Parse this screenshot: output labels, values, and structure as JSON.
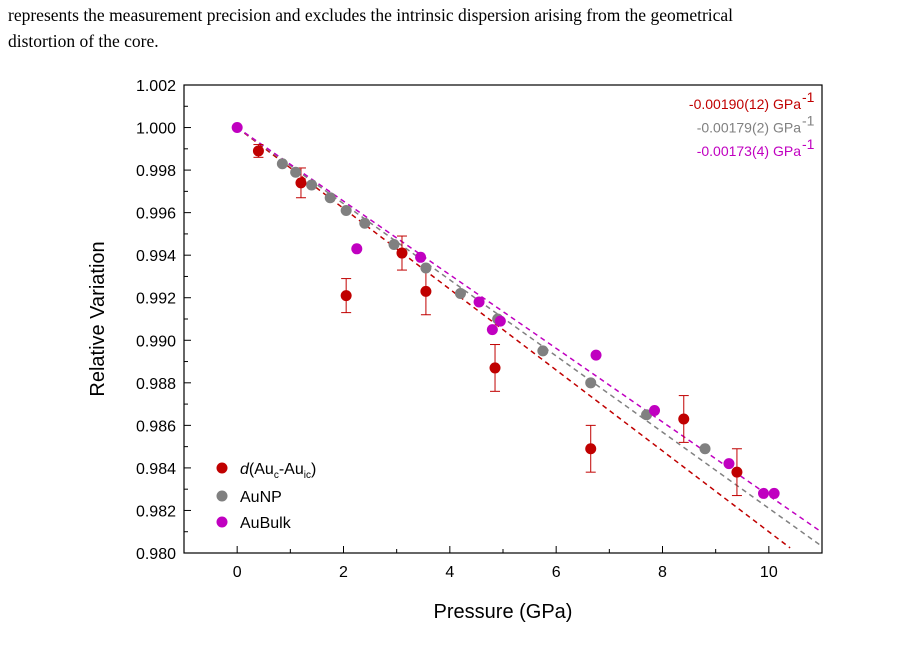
{
  "caption": {
    "line1": "represents the measurement precision and excludes the intrinsic dispersion arising from the geometrical",
    "line2": "distortion of the core."
  },
  "chart_data": {
    "type": "scatter",
    "xlabel": "Pressure (GPa)",
    "ylabel": "Relative Variation",
    "xlim": [
      -1,
      11
    ],
    "ylim": [
      0.98,
      1.002
    ],
    "x_ticks": [
      0,
      2,
      4,
      6,
      8,
      10
    ],
    "y_ticks": [
      0.98,
      0.982,
      0.984,
      0.986,
      0.988,
      0.99,
      0.992,
      0.994,
      0.996,
      0.998,
      1.0,
      1.002
    ],
    "x_tick_labels": [
      "0",
      "2",
      "4",
      "6",
      "8",
      "10"
    ],
    "y_tick_labels": [
      "0.980",
      "0.982",
      "0.984",
      "0.986",
      "0.988",
      "0.990",
      "0.992",
      "0.994",
      "0.996",
      "0.998",
      "1.000",
      "1.002"
    ],
    "grid": false,
    "legend_position": "bottom-left",
    "series": [
      {
        "name_parts": [
          "d",
          "(Au",
          "c",
          "-Au",
          "ic",
          ")"
        ],
        "color": "#c00000",
        "marker": "circle",
        "points": [
          {
            "x": 0.4,
            "y": 0.9989,
            "err": 0.0003
          },
          {
            "x": 1.2,
            "y": 0.9974,
            "err": 0.0007
          },
          {
            "x": 2.05,
            "y": 0.9921,
            "err": 0.0008
          },
          {
            "x": 3.1,
            "y": 0.9941,
            "err": 0.0008
          },
          {
            "x": 3.55,
            "y": 0.9923,
            "err": 0.0011
          },
          {
            "x": 4.85,
            "y": 0.9887,
            "err": 0.0011
          },
          {
            "x": 6.65,
            "y": 0.9849,
            "err": 0.0011
          },
          {
            "x": 8.4,
            "y": 0.9863,
            "err": 0.0011
          },
          {
            "x": 9.4,
            "y": 0.9838,
            "err": 0.0011
          }
        ]
      },
      {
        "name": "AuNP",
        "color": "#808080",
        "marker": "circle",
        "points": [
          {
            "x": 0.85,
            "y": 0.9983
          },
          {
            "x": 1.1,
            "y": 0.9979
          },
          {
            "x": 1.4,
            "y": 0.9973
          },
          {
            "x": 1.75,
            "y": 0.9967
          },
          {
            "x": 2.05,
            "y": 0.9961
          },
          {
            "x": 2.4,
            "y": 0.9955
          },
          {
            "x": 2.95,
            "y": 0.9945
          },
          {
            "x": 3.55,
            "y": 0.9934
          },
          {
            "x": 4.2,
            "y": 0.9922
          },
          {
            "x": 4.9,
            "y": 0.991
          },
          {
            "x": 5.75,
            "y": 0.9895
          },
          {
            "x": 6.65,
            "y": 0.988
          },
          {
            "x": 7.7,
            "y": 0.9865
          },
          {
            "x": 8.8,
            "y": 0.9849
          }
        ]
      },
      {
        "name": "AuBulk",
        "color": "#c000c0",
        "marker": "circle",
        "points": [
          {
            "x": 0.0,
            "y": 1.0
          },
          {
            "x": 2.25,
            "y": 0.9943
          },
          {
            "x": 3.45,
            "y": 0.9939
          },
          {
            "x": 4.55,
            "y": 0.9918
          },
          {
            "x": 4.8,
            "y": 0.9905
          },
          {
            "x": 4.95,
            "y": 0.9909
          },
          {
            "x": 6.75,
            "y": 0.9893
          },
          {
            "x": 7.85,
            "y": 0.9867
          },
          {
            "x": 9.25,
            "y": 0.9842
          },
          {
            "x": 9.9,
            "y": 0.9828
          },
          {
            "x": 10.1,
            "y": 0.9828
          }
        ]
      }
    ],
    "fits": [
      {
        "label": "-0.00190(12) GPa",
        "sup": "-1",
        "slope": -0.0019,
        "intercept": 1.0,
        "x_range": [
          0,
          10.4
        ],
        "color": "#c00000"
      },
      {
        "label": "-0.00179(2) GPa",
        "sup": "-1",
        "slope": -0.00179,
        "intercept": 1.0,
        "x_range": [
          0,
          11
        ],
        "color": "#808080"
      },
      {
        "label": "-0.00173(4) GPa",
        "sup": "-1",
        "slope": -0.00173,
        "intercept": 1.0,
        "x_range": [
          0,
          11
        ],
        "color": "#c000c0"
      }
    ]
  }
}
